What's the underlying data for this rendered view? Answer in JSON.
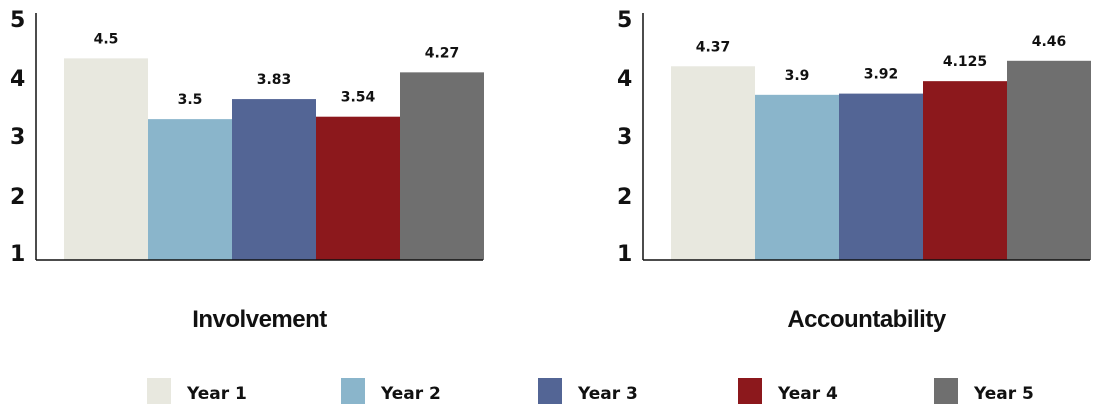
{
  "chart_data": [
    {
      "type": "bar",
      "title": "Involvement",
      "categories": [
        "Year 1",
        "Year 2",
        "Year 3",
        "Year 4",
        "Year 5"
      ],
      "values": [
        4.5,
        3.5,
        3.83,
        3.54,
        4.27
      ],
      "value_labels": [
        "4.5",
        "3.5",
        "3.83",
        "3.54",
        "4.27"
      ],
      "yticks": [
        "1",
        "2",
        "3",
        "4",
        "5"
      ],
      "ylim": [
        1,
        5
      ],
      "grid": false
    },
    {
      "type": "bar",
      "title": "Accountability",
      "categories": [
        "Year 1",
        "Year 2",
        "Year 3",
        "Year 4",
        "Year 5"
      ],
      "values": [
        4.37,
        3.9,
        3.92,
        4.125,
        4.46
      ],
      "value_labels": [
        "4.37",
        "3.9",
        "3.92",
        "4.125",
        "4.46"
      ],
      "yticks": [
        "1",
        "2",
        "3",
        "4",
        "5"
      ],
      "ylim": [
        1,
        5
      ],
      "grid": false
    }
  ],
  "legend": {
    "placement": "bottom",
    "items": [
      {
        "label": "Year 1",
        "color": "#e8e8df"
      },
      {
        "label": "Year 2",
        "color": "#8ab5cb"
      },
      {
        "label": "Year 3",
        "color": "#536595"
      },
      {
        "label": "Year 4",
        "color": "#8c181c"
      },
      {
        "label": "Year 5",
        "color": "#6f6f6f"
      }
    ]
  }
}
